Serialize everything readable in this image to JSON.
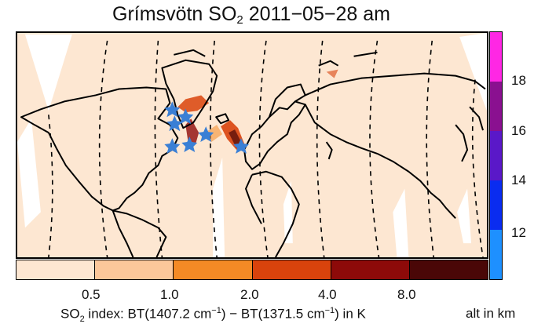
{
  "title": {
    "prefix": "Grímsvötn SO",
    "subscript": "2",
    "suffix": " 2011−05−28 am"
  },
  "map": {
    "land_outline_color": "#000000",
    "swath_edge_style": "dashed",
    "background_color": "#fde7d2",
    "gap_color": "#ffffff",
    "marker": {
      "symbol": "star",
      "color": "#3a7fd5",
      "count": 7
    }
  },
  "so2_colorbar": {
    "ticks": [
      "0.5",
      "1.0",
      "2.0",
      "4.0",
      "8.0"
    ],
    "colors": [
      "#fde7d2",
      "#fbc79a",
      "#f48a25",
      "#d9430c",
      "#8d0a09",
      "#4a0707"
    ],
    "label": {
      "part1": "SO",
      "sub": "2",
      "part2": " index: BT(1407.2 cm",
      "sup1": "−1",
      "part3": ") − BT(1371.5 cm",
      "sup2": "−1",
      "part4": ") in K"
    }
  },
  "alt_colorbar": {
    "ticks": [
      "12",
      "14",
      "16",
      "18"
    ],
    "colors": [
      "#1e90ff",
      "#0a2cf0",
      "#5a18c8",
      "#8a1090",
      "#ff27e4"
    ],
    "label": "alt in km"
  }
}
